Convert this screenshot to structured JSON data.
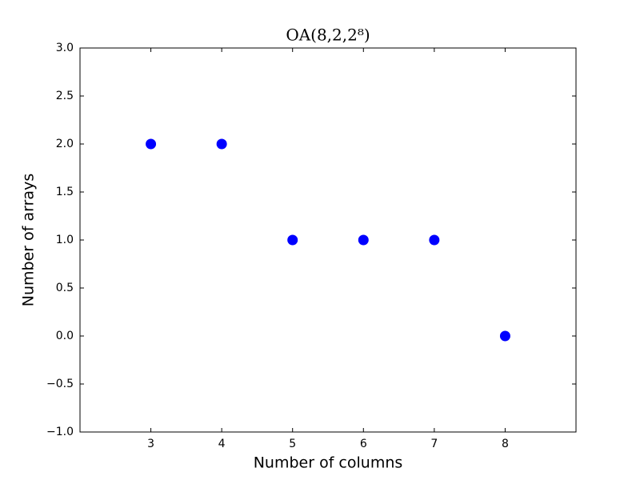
{
  "chart_data": {
    "type": "scatter",
    "title": "OA(8,2,2⁸)",
    "x_label": "Number of columns",
    "y_label": "Number of arrays",
    "x": [
      3,
      4,
      5,
      6,
      7,
      8
    ],
    "y": [
      2,
      2,
      1,
      1,
      1,
      0
    ],
    "color": "#0000ff",
    "xlim": [
      2,
      9
    ],
    "xticks": [
      3,
      4,
      5,
      6,
      7,
      8
    ],
    "ylim": [
      -1,
      3
    ],
    "yticks": [
      {
        "value": -1,
        "label": "−1.0"
      },
      {
        "value": -0.5,
        "label": "−0.5"
      },
      {
        "value": 0,
        "label": "0.0"
      },
      {
        "value": 0.5,
        "label": "0.5"
      },
      {
        "value": 1,
        "label": "1.0"
      },
      {
        "value": 1.5,
        "label": "1.5"
      },
      {
        "value": 2,
        "label": "2.0"
      },
      {
        "value": 2.5,
        "label": "2.5"
      },
      {
        "value": 3,
        "label": "3.0"
      }
    ],
    "grid": false
  }
}
